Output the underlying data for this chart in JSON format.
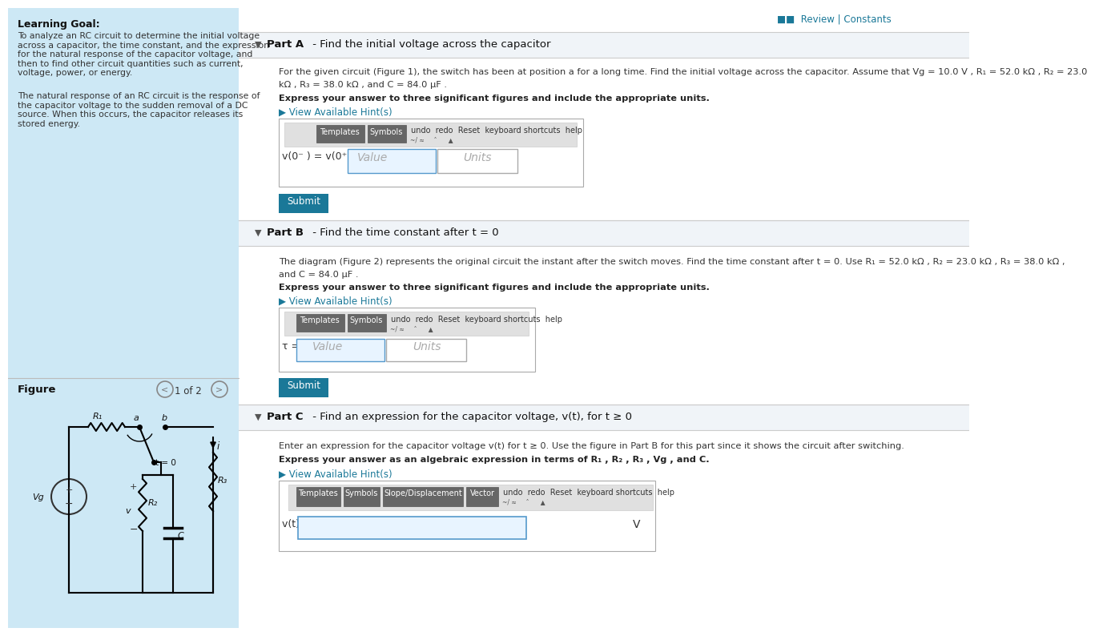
{
  "bg_color": "#ffffff",
  "left_panel_bg": "#cde8f5",
  "review_text": "■■  Review | Constants",
  "review_color": "#1a7898",
  "partA_title_bold": "Part A",
  "partA_title_rest": " - Find the initial voltage across the capacitor",
  "partA_body_line1": "For the given circuit (Figure 1), the switch has been at position a for a long time. Find the initial voltage across the capacitor. Assume that Vg = 10.0 V , R₁ = 52.0 kΩ , R₂ = 23.0",
  "partA_body_line2": "kΩ , R₃ = 38.0 kΩ , and C = 84.0 μF .",
  "partA_express": "Express your answer to three significant figures and include the appropriate units.",
  "partA_hint": "▶ View Available Hint(s)",
  "partA_eq": "v(0⁻ ) = v(0⁺ ) =",
  "partB_title_bold": "Part B",
  "partB_title_rest": " - Find the time constant after t = 0",
  "partB_body_line1": "The diagram (Figure 2) represents the original circuit the instant after the switch moves. Find the time constant after t = 0. Use R₁ = 52.0 kΩ , R₂ = 23.0 kΩ , R₃ = 38.0 kΩ ,",
  "partB_body_line2": "and C = 84.0 μF .",
  "partB_express": "Express your answer to three significant figures and include the appropriate units.",
  "partB_hint": "▶ View Available Hint(s)",
  "partB_eq": "τ =",
  "partC_title_bold": "Part C",
  "partC_title_rest": " - Find an expression for the capacitor voltage, v(t), for t ≥ 0",
  "partC_body": "Enter an expression for the capacitor voltage v(t) for t ≥ 0. Use the figure in Part B for this part since it shows the circuit after switching.",
  "partC_express": "Express your answer as an algebraic expression in terms of R₁ , R₂ , R₃ , Vg , and C.",
  "partC_hint": "▶ View Available Hint(s)",
  "partC_eq": "v(t) =",
  "submit_color": "#1a7898",
  "hint_color": "#1a7898",
  "figure_label": "Figure",
  "figure_nav": "1 of 2",
  "left_title": "Learning Goal:",
  "left_p1": "To analyze an RC circuit to determine the initial voltage\nacross a capacitor, the time constant, and the expression\nfor the natural response of the capacitor voltage, and\nthen to find other circuit quantities such as current,\nvoltage, power, or energy.",
  "left_p2": "The natural response of an RC circuit is the response of\nthe capacitor voltage to the sudden removal of a DC\nsource. When this occurs, the capacitor releases its\nstored energy.",
  "partA_hdr_bg": "#f0f4f8",
  "partB_hdr_bg": "#f0f4f8",
  "partC_hdr_bg": "#f0f4f8",
  "toolbar_dark": "#555555",
  "toolbar_light": "#e8e8e8",
  "input_blue": "#e8f4ff",
  "input_border": "#5599cc",
  "value_placeholder": "Value",
  "units_placeholder": "Units",
  "v_label": "V"
}
